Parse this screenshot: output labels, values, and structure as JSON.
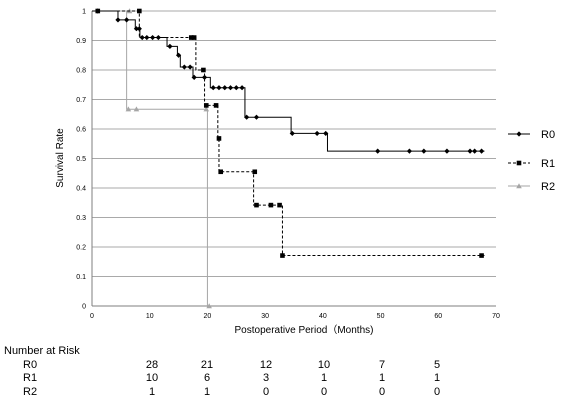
{
  "chart_data": {
    "type": "line",
    "step": true,
    "xlabel": "Postoperative Period（Months)",
    "ylabel": "Survival Rate",
    "xlim": [
      0,
      70
    ],
    "ylim": [
      0,
      1
    ],
    "xticks": [
      0,
      10,
      20,
      30,
      40,
      50,
      60,
      70
    ],
    "yticks": [
      0,
      0.1,
      0.2,
      0.3,
      0.4,
      0.5,
      0.6,
      0.7,
      0.8,
      0.9,
      1
    ],
    "grid": "horizontal",
    "legend": "right",
    "series": [
      {
        "name": "R0",
        "color": "#000000",
        "dash": "none",
        "marker": "diamond",
        "steps": [
          [
            0,
            1
          ],
          [
            4.5,
            0.97
          ],
          [
            7.5,
            0.94
          ],
          [
            8.3,
            0.91
          ],
          [
            13,
            0.88
          ],
          [
            14.8,
            0.85
          ],
          [
            15.3,
            0.81
          ],
          [
            17.5,
            0.775
          ],
          [
            19,
            0.775
          ],
          [
            20.5,
            0.74
          ],
          [
            26.5,
            0.64
          ],
          [
            34.5,
            0.585
          ],
          [
            40.8,
            0.525
          ],
          [
            68,
            0.525
          ]
        ],
        "censored": [
          [
            1,
            1
          ],
          [
            4.5,
            0.97
          ],
          [
            6,
            0.97
          ],
          [
            7.7,
            0.94
          ],
          [
            8.2,
            0.94
          ],
          [
            8.7,
            0.91
          ],
          [
            9.5,
            0.91
          ],
          [
            10.5,
            0.91
          ],
          [
            11.5,
            0.91
          ],
          [
            13.5,
            0.88
          ],
          [
            15,
            0.85
          ],
          [
            16,
            0.81
          ],
          [
            17,
            0.81
          ],
          [
            17.7,
            0.775
          ],
          [
            19.5,
            0.775
          ],
          [
            21,
            0.74
          ],
          [
            22,
            0.74
          ],
          [
            23,
            0.74
          ],
          [
            24,
            0.74
          ],
          [
            25,
            0.74
          ],
          [
            26,
            0.74
          ],
          [
            26.8,
            0.64
          ],
          [
            28.5,
            0.64
          ],
          [
            34.7,
            0.585
          ],
          [
            39,
            0.585
          ],
          [
            40.5,
            0.585
          ],
          [
            49.5,
            0.525
          ],
          [
            55,
            0.525
          ],
          [
            57.5,
            0.525
          ],
          [
            61.5,
            0.525
          ],
          [
            65.5,
            0.525
          ],
          [
            66.3,
            0.525
          ],
          [
            67.5,
            0.525
          ]
        ]
      },
      {
        "name": "R1",
        "color": "#000000",
        "dash": "3,2",
        "marker": "square",
        "steps": [
          [
            0,
            1
          ],
          [
            7.5,
            1
          ],
          [
            8.2,
            0.91
          ],
          [
            17.3,
            0.91
          ],
          [
            18,
            0.8
          ],
          [
            19.5,
            0.8
          ],
          [
            19.5,
            0.68
          ],
          [
            21.8,
            0.568
          ],
          [
            22,
            0.455
          ],
          [
            28,
            0.455
          ],
          [
            28,
            0.342
          ],
          [
            33,
            0.342
          ],
          [
            33,
            0.171
          ],
          [
            68,
            0.171
          ]
        ],
        "censored": [
          [
            1,
            1
          ],
          [
            8.2,
            1
          ],
          [
            17.2,
            0.91
          ],
          [
            17.7,
            0.91
          ],
          [
            19.3,
            0.8
          ],
          [
            19.8,
            0.68
          ],
          [
            21.5,
            0.68
          ],
          [
            22,
            0.568
          ],
          [
            22.3,
            0.455
          ],
          [
            28.2,
            0.455
          ],
          [
            28.5,
            0.342
          ],
          [
            31,
            0.342
          ],
          [
            32.5,
            0.342
          ],
          [
            33,
            0.171
          ],
          [
            67.5,
            0.171
          ]
        ]
      },
      {
        "name": "R2",
        "color": "#a6a6a6",
        "dash": "none",
        "marker": "triangle",
        "steps": [
          [
            0,
            1
          ],
          [
            6,
            1
          ],
          [
            6,
            0.667
          ],
          [
            20,
            0.667
          ],
          [
            20,
            0
          ]
        ],
        "censored": [
          [
            6.5,
            1
          ],
          [
            6.3,
            0.667
          ],
          [
            7.7,
            0.667
          ],
          [
            19.8,
            0.667
          ],
          [
            20.3,
            0
          ]
        ]
      }
    ]
  },
  "risk_table": {
    "title": "Number at Risk",
    "rows": [
      {
        "label": "R0",
        "counts": [
          "28",
          "21",
          "12",
          "10",
          "7",
          "5"
        ]
      },
      {
        "label": "R1",
        "counts": [
          "10",
          "6",
          "3",
          "1",
          "1",
          "1"
        ]
      },
      {
        "label": "R2",
        "counts": [
          "1",
          "1",
          "0",
          "0",
          "0",
          "0"
        ]
      }
    ]
  }
}
